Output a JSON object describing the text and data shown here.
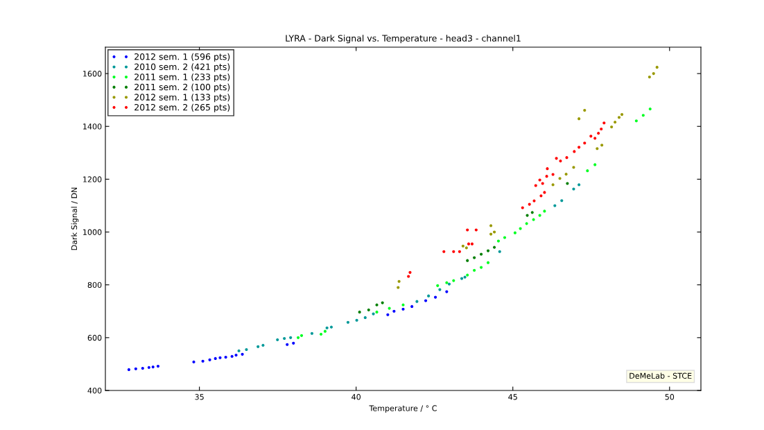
{
  "chart_data": {
    "type": "scatter",
    "title": "LYRA - Dark Signal vs. Temperature - head3 - channel1",
    "xlabel": "Temperature / ° C",
    "ylabel": "Dark Signal / DN",
    "xlim": [
      32,
      51
    ],
    "xticks": [
      35,
      40,
      45,
      50
    ],
    "ylim": [
      400,
      1700
    ],
    "yticks": [
      400,
      600,
      800,
      1000,
      1200,
      1400,
      1600
    ],
    "grid": false,
    "legend": "top left",
    "marker": "circle",
    "annotations": [
      "DeMeLab - STCE"
    ],
    "series": [
      {
        "name": "2012 sem. 1 (596 pts)",
        "color": "#0000ff",
        "x": [
          32.75,
          32.97,
          33.19,
          33.39,
          33.52,
          33.68,
          34.82,
          35.11,
          35.33,
          35.51,
          35.66,
          35.84,
          36.04,
          36.17,
          36.37,
          37.8,
          38.0,
          41.01,
          41.21,
          41.5,
          41.78,
          42.22,
          42.53,
          42.89
        ],
        "values": [
          479,
          482,
          484,
          487,
          489,
          492,
          508,
          511,
          516,
          521,
          524,
          526,
          529,
          534,
          537,
          574,
          579,
          687,
          700,
          708,
          718,
          740,
          753,
          774
        ]
      },
      {
        "name": "2010 sem. 2 (421 pts)",
        "color": "#009999",
        "x": [
          36.26,
          36.5,
          36.87,
          37.03,
          37.49,
          37.71,
          37.91,
          38.59,
          39.07,
          39.21,
          39.74,
          40.02,
          40.29,
          40.55,
          41.94,
          42.31,
          42.67,
          42.97,
          43.37,
          43.47,
          44.58,
          46.34,
          46.56,
          46.94,
          47.11
        ],
        "values": [
          550,
          555,
          566,
          571,
          592,
          597,
          600,
          616,
          637,
          640,
          658,
          666,
          676,
          690,
          737,
          758,
          782,
          803,
          824,
          829,
          926,
          1100,
          1119,
          1163,
          1179
        ]
      },
      {
        "name": "2011 sem. 1 (233 pts)",
        "color": "#00ff22",
        "x": [
          38.15,
          38.26,
          38.88,
          39.01,
          40.66,
          41.06,
          41.5,
          42.6,
          42.89,
          43.11,
          43.55,
          43.77,
          43.99,
          44.21,
          44.54,
          44.74,
          45.07,
          45.24,
          45.44,
          45.66,
          45.86,
          46.01,
          47.38,
          47.62,
          48.94,
          49.16,
          49.38
        ],
        "values": [
          600,
          608,
          613,
          624,
          697,
          711,
          724,
          797,
          808,
          816,
          837,
          855,
          866,
          884,
          966,
          979,
          997,
          1013,
          1032,
          1047,
          1063,
          1079,
          1232,
          1255,
          1421,
          1442,
          1466
        ]
      },
      {
        "name": "2011 sem. 2 (100 pts)",
        "color": "#007f00",
        "x": [
          40.11,
          40.4,
          40.66,
          40.84,
          43.55,
          43.77,
          43.99,
          44.21,
          44.41,
          45.46,
          45.62,
          46.74
        ],
        "values": [
          697,
          705,
          724,
          732,
          892,
          903,
          916,
          929,
          942,
          1063,
          1074,
          1184
        ]
      },
      {
        "name": "2012 sem. 1 (133 pts)",
        "color": "#999900",
        "x": [
          41.34,
          41.37,
          43.41,
          43.52,
          44.3,
          44.3,
          44.41,
          46.28,
          46.5,
          46.7,
          46.94,
          47.11,
          47.29,
          47.69,
          47.84,
          48.15,
          48.26,
          48.39,
          48.48,
          49.36,
          49.49,
          49.6
        ],
        "values": [
          790,
          813,
          947,
          940,
          1024,
          992,
          1000,
          1179,
          1203,
          1219,
          1245,
          1429,
          1461,
          1316,
          1329,
          1398,
          1416,
          1434,
          1445,
          1587,
          1600,
          1624
        ]
      },
      {
        "name": "2012 sem. 2 (265 pts)",
        "color": "#ff0000",
        "x": [
          41.67,
          41.72,
          42.8,
          43.11,
          43.3,
          43.55,
          43.83,
          43.59,
          43.7,
          45.31,
          45.53,
          45.68,
          45.9,
          46.01,
          45.86,
          46.08,
          46.28,
          46.1,
          46.39,
          46.52,
          46.72,
          46.96,
          47.11,
          47.29,
          47.49,
          47.62,
          47.73,
          47.82,
          47.91,
          45.73,
          45.95
        ],
        "values": [
          832,
          847,
          926,
          926,
          926,
          1008,
          1008,
          955,
          955,
          1092,
          1105,
          1118,
          1137,
          1150,
          1197,
          1211,
          1218,
          1240,
          1279,
          1269,
          1282,
          1305,
          1321,
          1337,
          1363,
          1355,
          1374,
          1390,
          1413,
          1176,
          1184
        ]
      }
    ]
  }
}
